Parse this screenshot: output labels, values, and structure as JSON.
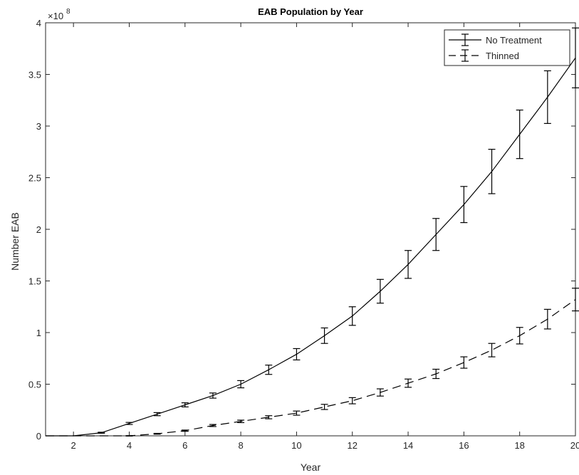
{
  "chart_data": {
    "type": "line",
    "title": "EAB Population by Year",
    "xlabel": "Year",
    "ylabel": "Number EAB",
    "y_exponent_label": "×10",
    "y_exponent_power": "8",
    "y_multiplier": 100000000,
    "xlim": [
      1,
      20
    ],
    "ylim": [
      0,
      4
    ],
    "x_ticks": [
      2,
      4,
      6,
      8,
      10,
      12,
      14,
      16,
      18,
      20
    ],
    "x_tick_labels": [
      "2",
      "4",
      "6",
      "8",
      "10",
      "12",
      "14",
      "16",
      "18",
      "20"
    ],
    "y_ticks": [
      0,
      0.5,
      1,
      1.5,
      2,
      2.5,
      3,
      3.5,
      4
    ],
    "y_tick_labels": [
      "0",
      "0.5",
      "1",
      "1.5",
      "2",
      "2.5",
      "3",
      "3.5",
      "4"
    ],
    "grid": false,
    "legend_position": "top-right",
    "x": [
      1,
      2,
      3,
      4,
      5,
      6,
      7,
      8,
      9,
      10,
      11,
      12,
      13,
      14,
      15,
      16,
      17,
      18,
      19,
      20
    ],
    "series": [
      {
        "name": "No Treatment",
        "line_style": "solid",
        "color": "#000000",
        "values": [
          0,
          0.0,
          0.03,
          0.12,
          0.21,
          0.3,
          0.39,
          0.5,
          0.64,
          0.79,
          0.97,
          1.16,
          1.4,
          1.66,
          1.95,
          2.24,
          2.56,
          2.92,
          3.28,
          3.66
        ],
        "errors": [
          0,
          0,
          0.005,
          0.01,
          0.015,
          0.02,
          0.025,
          0.035,
          0.045,
          0.055,
          0.075,
          0.09,
          0.115,
          0.135,
          0.155,
          0.175,
          0.215,
          0.235,
          0.255,
          0.29
        ]
      },
      {
        "name": "Thinned",
        "line_style": "dashed",
        "color": "#000000",
        "values": [
          0,
          0.0,
          0.0,
          0.0,
          0.02,
          0.05,
          0.1,
          0.14,
          0.18,
          0.22,
          0.28,
          0.34,
          0.42,
          0.51,
          0.6,
          0.71,
          0.83,
          0.97,
          1.13,
          1.32
        ],
        "errors": [
          0,
          0,
          0,
          0.002,
          0.004,
          0.006,
          0.01,
          0.012,
          0.015,
          0.02,
          0.025,
          0.03,
          0.035,
          0.04,
          0.045,
          0.055,
          0.065,
          0.08,
          0.095,
          0.11
        ]
      }
    ]
  }
}
